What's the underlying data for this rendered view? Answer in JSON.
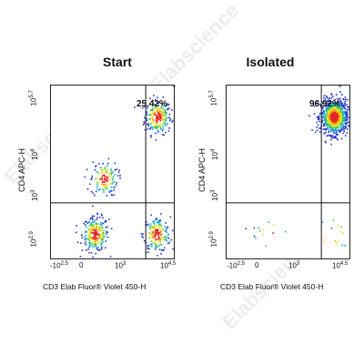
{
  "watermark": "Elabscience",
  "chart_data": [
    {
      "type": "scatter",
      "title": "Start",
      "xlabel": "CD3 Elab Fluor® Violet 450-H",
      "ylabel": "CD4 APC-H",
      "xlim": [
        -2.5,
        4.5
      ],
      "ylim": [
        2.9,
        5.7
      ],
      "x_tick_labels": [
        "-10^2.5",
        "0",
        "10^3",
        "10^4.5"
      ],
      "y_tick_labels": [
        "10^2.9",
        "10^3",
        "10^4",
        "10^5.7"
      ],
      "quadrant_gate": {
        "x": 2.9,
        "y": 3.8
      },
      "annotation": "25.42%",
      "marker": "*",
      "clusters": [
        {
          "name": "CD3+CD4+",
          "x": 3.55,
          "y": 5.2,
          "share": 0.25
        },
        {
          "name": "CD3-CD4-",
          "x": 0.0,
          "y": 3.3,
          "share": 0.28
        },
        {
          "name": "CD3+CD4-",
          "x": 3.5,
          "y": 3.3,
          "share": 0.22
        },
        {
          "name": "CD3-CD4+",
          "x": 0.5,
          "y": 4.2,
          "share": 0.15
        }
      ]
    },
    {
      "type": "scatter",
      "title": "Isolated",
      "xlabel": "CD3 Elab Fluor® Violet 450-H",
      "ylabel": "CD4 APC-H",
      "xlim": [
        -2.5,
        4.5
      ],
      "ylim": [
        2.9,
        5.7
      ],
      "x_tick_labels": [
        "-10^2.5",
        "0",
        "10^3",
        "10^4.5"
      ],
      "y_tick_labels": [
        "10^2.9",
        "10^3",
        "10^4",
        "10^5.7"
      ],
      "quadrant_gate": {
        "x": 2.9,
        "y": 3.8
      },
      "annotation": "96.92%",
      "marker": "*",
      "clusters": [
        {
          "name": "CD3+CD4+",
          "x": 3.6,
          "y": 5.2,
          "share": 0.97
        },
        {
          "name": "CD3-CD4-",
          "x": 0.0,
          "y": 3.3,
          "share": 0.015
        },
        {
          "name": "CD3+CD4-",
          "x": 3.5,
          "y": 3.3,
          "share": 0.015
        }
      ]
    }
  ]
}
